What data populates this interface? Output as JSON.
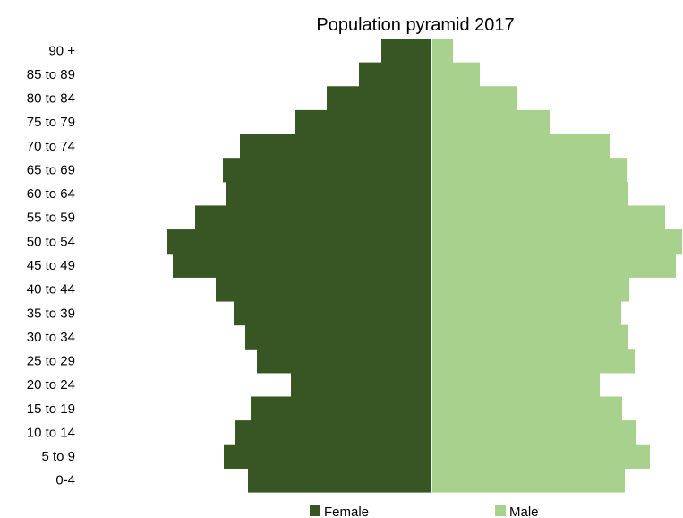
{
  "chart_data": {
    "type": "bar",
    "orientation": "horizontal-pyramid",
    "title": "Population pyramid 2017",
    "categories": [
      "0-4",
      "5 to 9",
      "10 to 14",
      "15 to 19",
      "20 to 24",
      "25 to 29",
      "30 to 34",
      "35 to 39",
      "40 to 44",
      "45 to 49",
      "50 to 54",
      "55 to 59",
      "60 to 64",
      "65 to 69",
      "70 to 74",
      "75 to 79",
      "80 to 84",
      "85 to 89",
      "90 +"
    ],
    "series": [
      {
        "name": "Female",
        "color": "#375623",
        "values": [
          205,
          232,
          220,
          202,
          157,
          195,
          208,
          221,
          241,
          289,
          295,
          264,
          230,
          233,
          214,
          152,
          117,
          81,
          56
        ]
      },
      {
        "name": "Male",
        "color": "#A9D18E",
        "values": [
          216,
          244,
          229,
          213,
          188,
          227,
          219,
          212,
          221,
          273,
          280,
          261,
          219,
          218,
          200,
          132,
          96,
          54,
          24
        ]
      }
    ],
    "ylim": [
      0,
      19
    ],
    "xlim": [
      -300,
      300
    ],
    "grid": false,
    "legend_position": "bottom"
  }
}
